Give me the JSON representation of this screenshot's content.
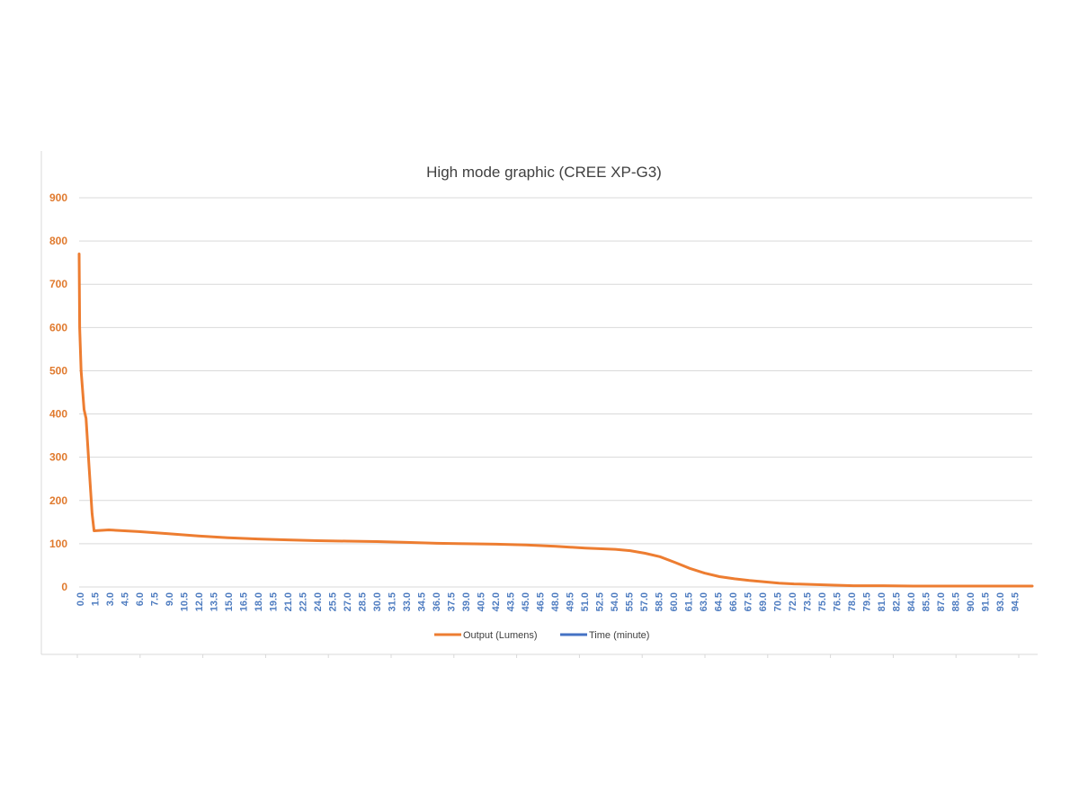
{
  "chart_data": {
    "type": "line",
    "title": "High mode graphic (CREE XP-G3)",
    "xlabel": "",
    "ylabel": "",
    "ylim": [
      0,
      900
    ],
    "xlim": [
      0,
      96
    ],
    "y_ticks": [
      "0",
      "100",
      "200",
      "300",
      "400",
      "500",
      "600",
      "700",
      "800",
      "900"
    ],
    "x_ticks": [
      "0.0",
      "1.5",
      "3.0",
      "4.5",
      "6.0",
      "7.5",
      "9.0",
      "10.5",
      "12.0",
      "13.5",
      "15.0",
      "16.5",
      "18.0",
      "19.5",
      "21.0",
      "22.5",
      "24.0",
      "25.5",
      "27.0",
      "28.5",
      "30.0",
      "31.5",
      "33.0",
      "34.5",
      "36.0",
      "37.5",
      "39.0",
      "40.5",
      "42.0",
      "43.5",
      "45.0",
      "46.5",
      "48.0",
      "49.5",
      "51.0",
      "52.5",
      "54.0",
      "55.5",
      "57.0",
      "58.5",
      "60.0",
      "61.5",
      "63.0",
      "64.5",
      "66.0",
      "67.5",
      "69.0",
      "70.5",
      "72.0",
      "73.5",
      "75.0",
      "76.5",
      "78.0",
      "79.5",
      "81.0",
      "82.5",
      "84.0",
      "85.5",
      "87.0",
      "88.5",
      "90.0",
      "91.5",
      "93.0",
      "94.5"
    ],
    "grid": true,
    "legend_position": "bottom",
    "series": [
      {
        "name": "Output (Lumens)",
        "color": "#ED7D31",
        "x": [
          0,
          0.05,
          0.2,
          0.5,
          0.7,
          1.0,
          1.3,
          1.5,
          3,
          6,
          9,
          12,
          15,
          18,
          21,
          24,
          27,
          30,
          33,
          36,
          39,
          42,
          45,
          48,
          51,
          54,
          55.5,
          57,
          58.5,
          60,
          61.5,
          63,
          64.5,
          66,
          67.5,
          69,
          70.5,
          72,
          75,
          78,
          81,
          84,
          87,
          90,
          93,
          96
        ],
        "y": [
          770,
          600,
          500,
          410,
          390,
          280,
          170,
          130,
          132,
          128,
          123,
          118,
          114,
          111,
          109,
          107,
          106,
          105,
          103,
          101,
          100,
          99,
          97,
          94,
          90,
          87,
          84,
          78,
          70,
          57,
          43,
          32,
          24,
          19,
          15,
          12,
          9,
          7,
          5,
          3,
          3,
          2,
          2,
          2,
          2,
          2
        ]
      },
      {
        "name": "Time (minute)",
        "color": "#4472C4",
        "x": [],
        "y": []
      }
    ]
  },
  "colors": {
    "axis_label": "#E07A2E",
    "x_tick_label": "#4E7CC0",
    "gridline": "#D9D9D9",
    "title": "#404040",
    "legend_text": "#404040"
  }
}
